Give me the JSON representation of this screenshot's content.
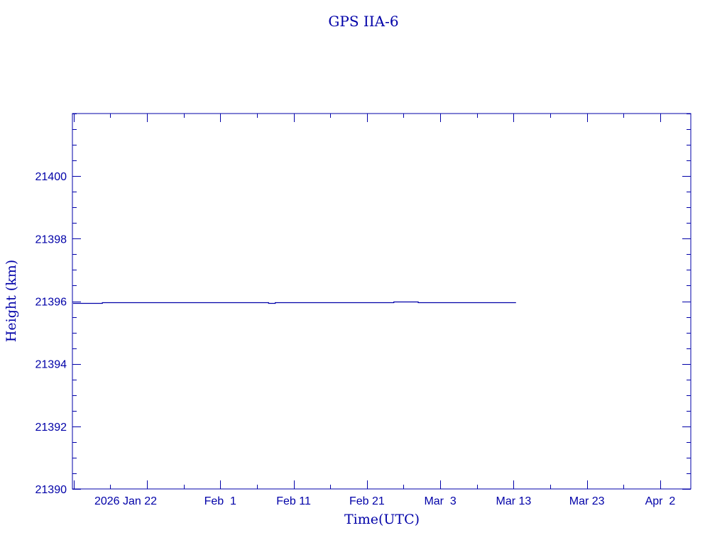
{
  "chart_data": {
    "type": "line",
    "title": "GPS IIA-6",
    "xlabel": "Time(UTC)",
    "ylabel": "Height (km)",
    "xlim": [
      "2026-01-11T20:00",
      "2026-04-06T04:00"
    ],
    "ylim": [
      21390,
      21402
    ],
    "grid": false,
    "color": "#0000a8",
    "y_ticks": [
      21390,
      21392,
      21394,
      21396,
      21398,
      21400
    ],
    "x_ticks": [
      {
        "date": "2026-01-22",
        "label": "2026 Jan 22"
      },
      {
        "date": "2026-02-01",
        "label": "Feb  1"
      },
      {
        "date": "2026-02-11",
        "label": "Feb 11"
      },
      {
        "date": "2026-02-21",
        "label": "Feb 21"
      },
      {
        "date": "2026-03-03",
        "label": "Mar  3"
      },
      {
        "date": "2026-03-13",
        "label": "Mar 13"
      },
      {
        "date": "2026-03-23",
        "label": "Mar 23"
      },
      {
        "date": "2026-04-02",
        "label": "Apr  2"
      }
    ],
    "series": [
      {
        "x": [
          "2026-01-11T22:00",
          "2026-01-15T22:00",
          "2026-01-15T22:00",
          "2026-02-07T14:00",
          "2026-02-07T14:00",
          "2026-02-08T12:00",
          "2026-02-08T12:00",
          "2026-02-24T16:00",
          "2026-02-24T16:00",
          "2026-02-28T00:00",
          "2026-02-28T00:00",
          "2026-03-13T08:00"
        ],
        "y": [
          21395.95,
          21395.95,
          21395.97,
          21395.97,
          21395.95,
          21395.95,
          21395.97,
          21395.97,
          21396.0,
          21396.0,
          21395.97,
          21395.97
        ]
      }
    ]
  }
}
